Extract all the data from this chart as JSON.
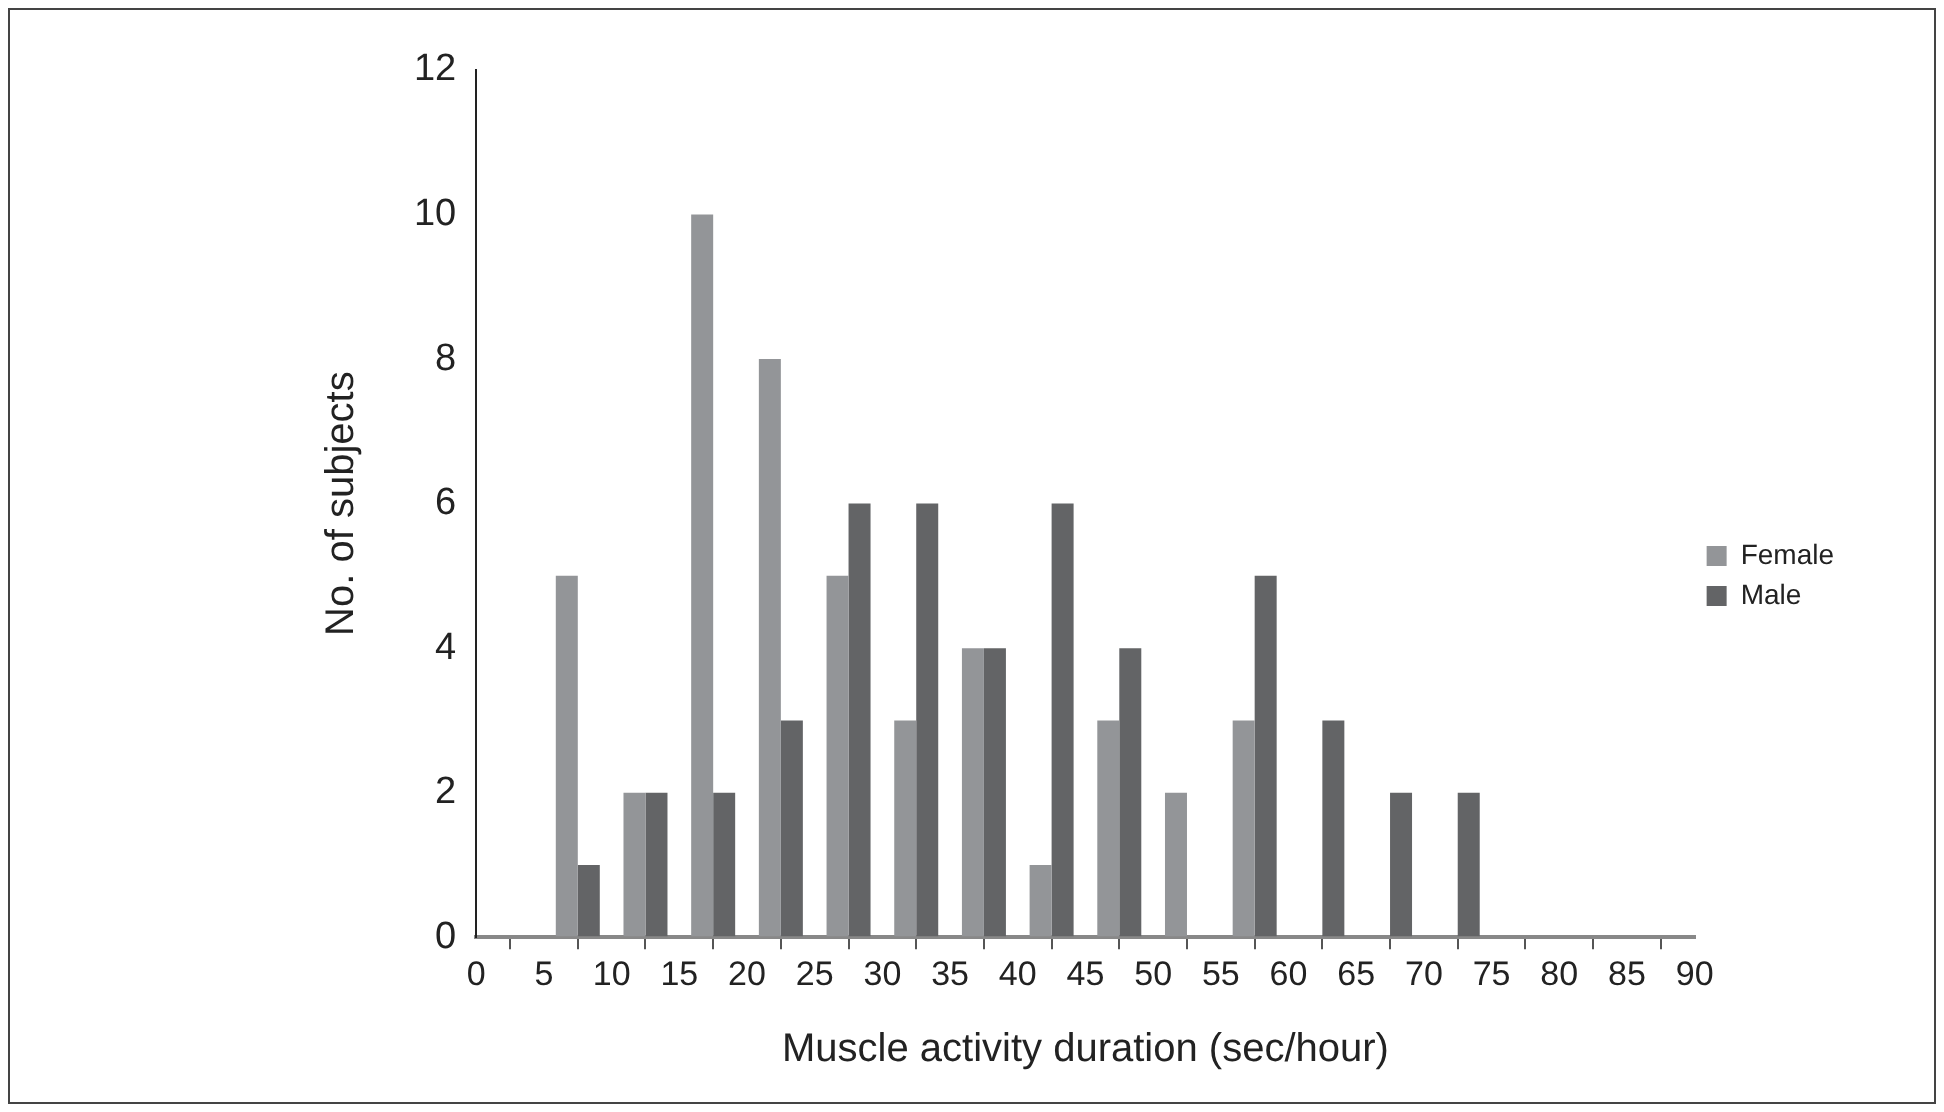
{
  "chart_data": {
    "type": "histogram",
    "xlabel": "Muscle activity duration (sec/hour)",
    "ylabel": "No. of subjects",
    "bins": [
      0,
      5,
      10,
      15,
      20,
      25,
      30,
      35,
      40,
      45,
      50,
      55,
      60,
      65,
      70,
      75,
      80,
      85,
      90
    ],
    "series": [
      {
        "name": "Female",
        "color": "#939598",
        "values": [
          0,
          5,
          2,
          10,
          8,
          5,
          3,
          4,
          1,
          3,
          2,
          3,
          0,
          0,
          0,
          0,
          0,
          0
        ]
      },
      {
        "name": "Male",
        "color": "#636466",
        "values": [
          0,
          1,
          2,
          2,
          3,
          6,
          6,
          4,
          6,
          4,
          0,
          5,
          3,
          2,
          2,
          0,
          0,
          0
        ]
      }
    ],
    "xlim": [
      0,
      90
    ],
    "xticks": [
      0,
      5,
      10,
      15,
      20,
      25,
      30,
      35,
      40,
      45,
      50,
      55,
      60,
      65,
      70,
      75,
      80,
      85,
      90
    ],
    "ylim": [
      0,
      12
    ],
    "yticks": [
      0,
      2,
      4,
      6,
      8,
      10,
      12
    ],
    "grid": false,
    "legend": "right"
  }
}
